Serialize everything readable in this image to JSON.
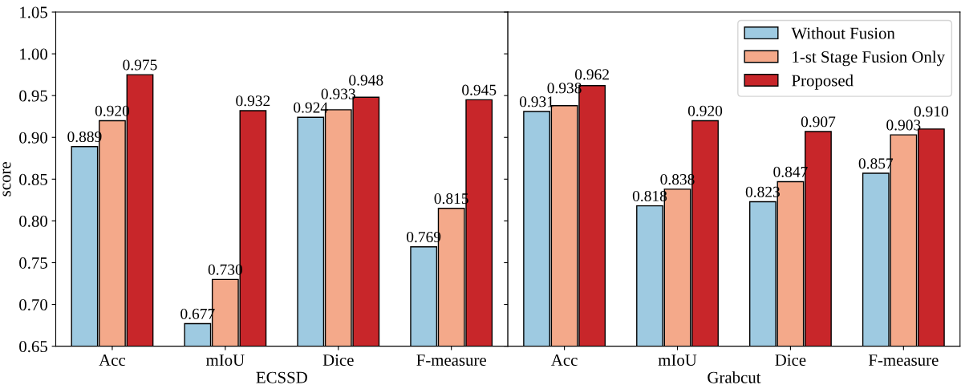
{
  "chart_data": [
    {
      "type": "bar",
      "xlabel": "ECSSD",
      "ylabel": "score",
      "categories": [
        "Acc",
        "mIoU",
        "Dice",
        "F-measure"
      ],
      "series": [
        {
          "color": "#9ecae1",
          "values": [
            0.889,
            0.677,
            0.924,
            0.769
          ],
          "value_labels": [
            "0.889",
            "0.677",
            "0.924",
            "0.769"
          ]
        },
        {
          "color": "#f4a98a",
          "values": [
            0.92,
            0.73,
            0.933,
            0.815
          ],
          "value_labels": [
            "0.920",
            "0.730",
            "0.933",
            "0.815"
          ]
        },
        {
          "color": "#c8262a",
          "values": [
            0.975,
            0.932,
            0.948,
            0.945
          ],
          "value_labels": [
            "0.975",
            "0.932",
            "0.948",
            "0.945"
          ]
        }
      ],
      "ylim": [
        0.65,
        1.05
      ],
      "yticks": [
        {
          "value": 0.65,
          "label": "0.65"
        },
        {
          "value": 0.7,
          "label": "0.70"
        },
        {
          "value": 0.75,
          "label": "0.75"
        },
        {
          "value": 0.8,
          "label": "0.80"
        },
        {
          "value": 0.85,
          "label": "0.85"
        },
        {
          "value": 0.9,
          "label": "0.90"
        },
        {
          "value": 0.95,
          "label": "0.95"
        },
        {
          "value": 1.0,
          "label": "1.00"
        },
        {
          "value": 1.05,
          "label": "1.05"
        }
      ],
      "grid": false,
      "legend": false
    },
    {
      "type": "bar",
      "xlabel": "Grabcut",
      "categories": [
        "Acc",
        "mIoU",
        "Dice",
        "F-measure"
      ],
      "series": [
        {
          "name": "Without Fusion",
          "color": "#9ecae1",
          "values": [
            0.931,
            0.818,
            0.823,
            0.857
          ],
          "value_labels": [
            "0.931",
            "0.818",
            "0.823",
            "0.857"
          ]
        },
        {
          "name": "1-st Stage Fusion Only",
          "color": "#f4a98a",
          "values": [
            0.938,
            0.838,
            0.847,
            0.903
          ],
          "value_labels": [
            "0.938",
            "0.838",
            "0.847",
            "0.903"
          ]
        },
        {
          "name": "Proposed",
          "color": "#c8262a",
          "values": [
            0.962,
            0.92,
            0.907,
            0.91
          ],
          "value_labels": [
            "0.962",
            "0.920",
            "0.907",
            "0.910"
          ]
        }
      ],
      "ylim": [
        0.65,
        1.05
      ],
      "yticks": [
        {
          "value": 0.65,
          "label": null
        },
        {
          "value": 0.7,
          "label": null
        },
        {
          "value": 0.75,
          "label": null
        },
        {
          "value": 0.8,
          "label": null
        },
        {
          "value": 0.85,
          "label": null
        },
        {
          "value": 0.9,
          "label": null
        },
        {
          "value": 0.95,
          "label": null
        },
        {
          "value": 1.0,
          "label": null
        },
        {
          "value": 1.05,
          "label": null
        }
      ],
      "tick_labels": "x",
      "grid": false,
      "legend": "top right"
    }
  ]
}
